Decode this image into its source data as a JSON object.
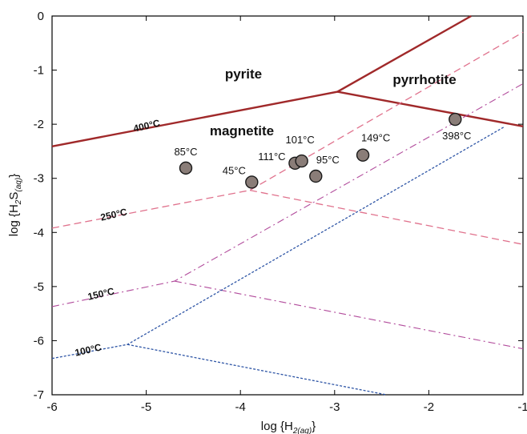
{
  "chart_data": {
    "type": "line",
    "xlabel_main": "log {H",
    "xlabel_sub": "2(aq)",
    "xlabel_end": "}",
    "ylabel_main": "log {H",
    "ylabel_sub1": "2",
    "ylabel_mid": "S",
    "ylabel_sub2": "(aq)",
    "ylabel_end": "}",
    "xlim": [
      -6,
      -1
    ],
    "ylim": [
      -7,
      0
    ],
    "x_ticks": [
      "-6",
      "-5",
      "-4",
      "-3",
      "-2",
      "-1"
    ],
    "y_ticks": [
      "0",
      "-1",
      "-2",
      "-3",
      "-4",
      "-5",
      "-6",
      "-7"
    ],
    "field_labels": [
      "pyrite",
      "pyrrhotite",
      "magnetite"
    ],
    "series": [
      {
        "name": "400°C",
        "color": "#A0292A",
        "dash": "solid",
        "segments": [
          [
            [
              -6,
              -2.41
            ],
            [
              -2.97,
              -1.4
            ],
            [
              -1.55,
              0
            ]
          ],
          [
            [
              -2.97,
              -1.4
            ],
            [
              -1,
              -2.04
            ]
          ]
        ]
      },
      {
        "name": "250°C",
        "color": "#E0728D",
        "dash": "dashed",
        "segments": [
          [
            [
              -6,
              -3.92
            ],
            [
              -3.9,
              -3.22
            ],
            [
              -1,
              -0.3
            ]
          ],
          [
            [
              -3.9,
              -3.22
            ],
            [
              -1,
              -4.22
            ]
          ]
        ]
      },
      {
        "name": "150°C",
        "color": "#B24C9C",
        "dash": "dashdot",
        "segments": [
          [
            [
              -6,
              -5.37
            ],
            [
              -4.7,
              -4.9
            ],
            [
              -1,
              -1.25
            ]
          ],
          [
            [
              -4.7,
              -4.9
            ],
            [
              -1,
              -6.15
            ]
          ]
        ]
      },
      {
        "name": "100°C",
        "color": "#2F56A6",
        "dash": "dotted",
        "segments": [
          [
            [
              -6,
              -6.33
            ],
            [
              -5.2,
              -6.07
            ],
            [
              -1.2,
              -2.05
            ]
          ],
          [
            [
              -5.2,
              -6.07
            ],
            [
              -2.45,
              -7
            ]
          ]
        ]
      }
    ],
    "points": [
      {
        "label": "85°C",
        "x": -4.58,
        "y": -2.81
      },
      {
        "label": "45°C",
        "x": -3.88,
        "y": -3.07
      },
      {
        "label": "111°C",
        "x": -3.42,
        "y": -2.72
      },
      {
        "label": "101°C",
        "x": -3.35,
        "y": -2.68
      },
      {
        "label": "95°C",
        "x": -3.2,
        "y": -2.96
      },
      {
        "label": "149°C",
        "x": -2.7,
        "y": -2.57
      },
      {
        "label": "398°C",
        "x": -1.72,
        "y": -1.91
      }
    ]
  }
}
